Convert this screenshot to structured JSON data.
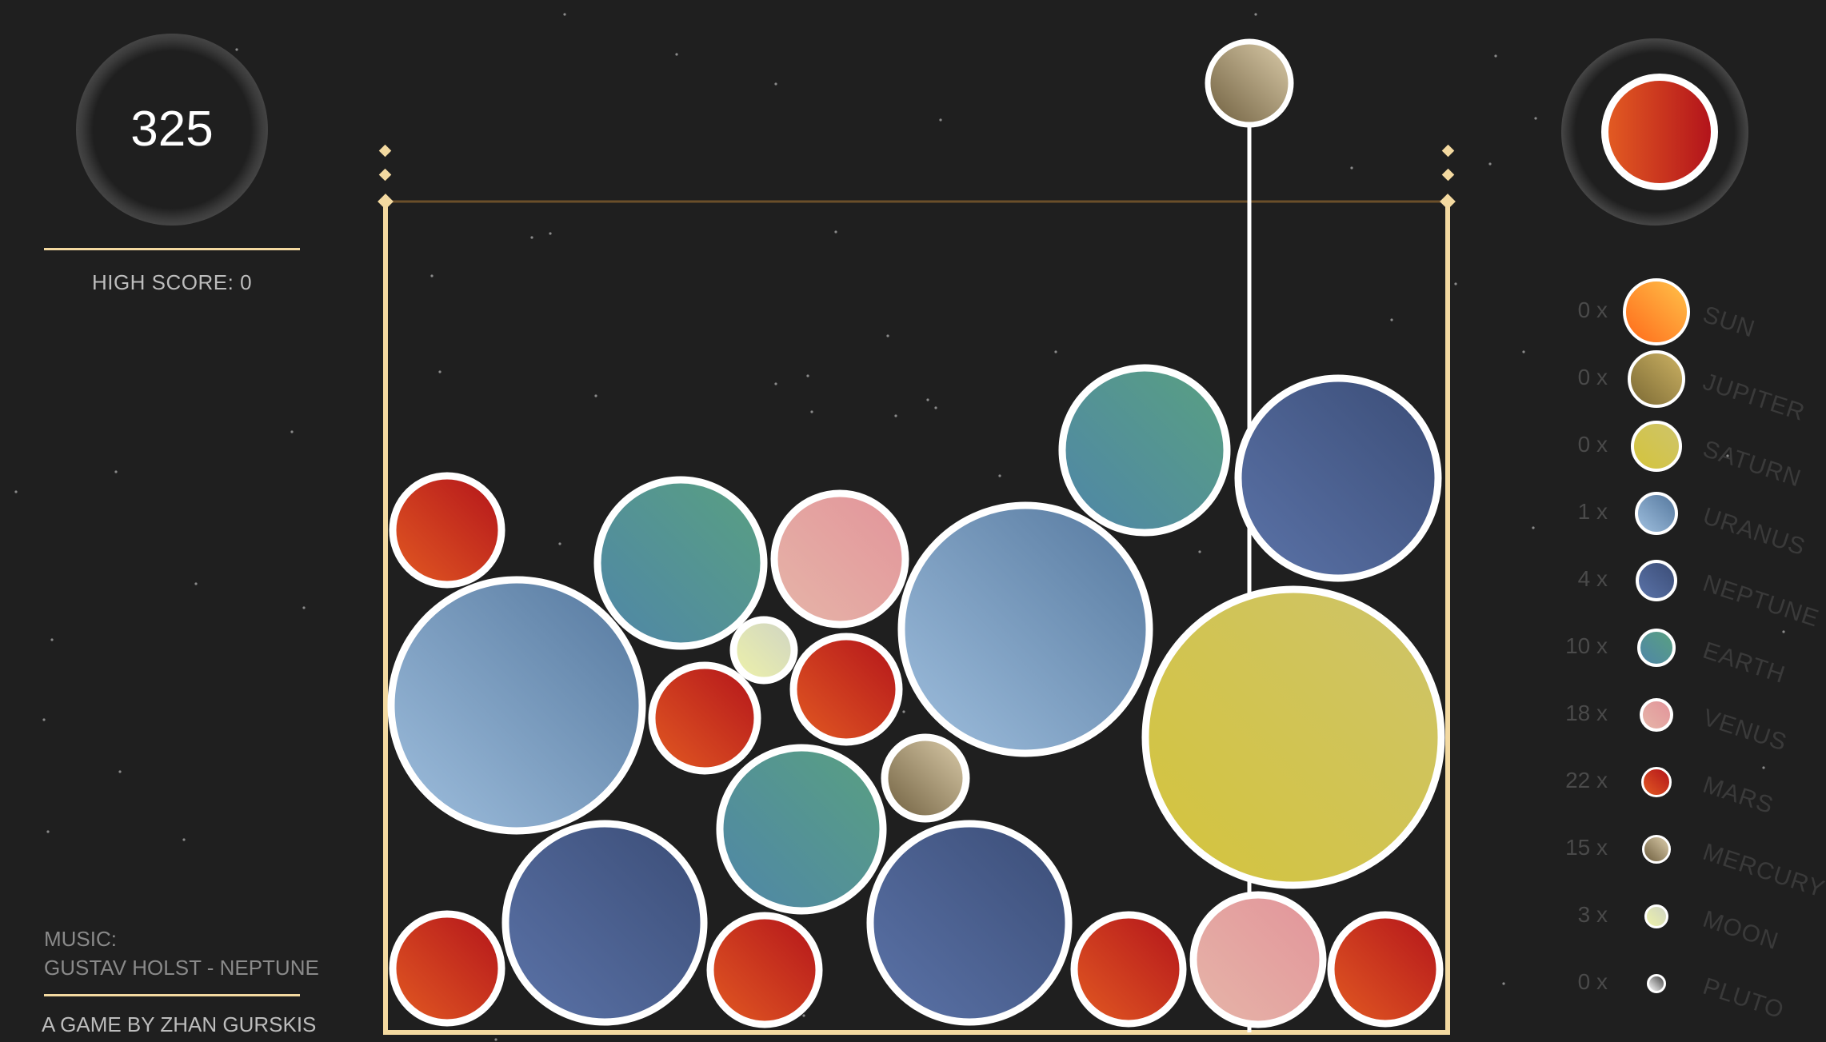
{
  "score": "325",
  "high_score_label": "HIGH SCORE: 0",
  "music_label": "MUSIC:",
  "music_track": "GUSTAV HOLST - NEPTUNE",
  "credit": "A GAME BY ZHAN GURSKIS",
  "planet_colors": {
    "sun": [
      "#ff6a1a",
      "#ffc24a"
    ],
    "jupiter": [
      "#7c6a34",
      "#cbb163"
    ],
    "saturn": [
      "#d4c43c",
      "#cec46a"
    ],
    "uranus": [
      "#9fbfde",
      "#55789e"
    ],
    "neptune": [
      "#5b73a8",
      "#3b4d77"
    ],
    "earth": [
      "#4f86a8",
      "#59a081"
    ],
    "venus": [
      "#e6b5a8",
      "#e2949a"
    ],
    "mars": [
      "#e25a22",
      "#b3141b"
    ],
    "mercury": [
      "#6e5e3e",
      "#dccdab"
    ],
    "moon": [
      "#eef2a8",
      "#cfd4c4"
    ],
    "pluto": [
      "#ffffff",
      "#444444"
    ]
  },
  "next_planet": "mars",
  "dropper_planet": "mercury",
  "legend": [
    {
      "count": "0 x",
      "name": "SUN",
      "planet": "sun"
    },
    {
      "count": "0 x",
      "name": "JUPITER",
      "planet": "jupiter"
    },
    {
      "count": "0 x",
      "name": "SATURN",
      "planet": "saturn"
    },
    {
      "count": "1 x",
      "name": "URANUS",
      "planet": "uranus"
    },
    {
      "count": "4 x",
      "name": "NEPTUNE",
      "planet": "neptune"
    },
    {
      "count": "10 x",
      "name": "EARTH",
      "planet": "earth"
    },
    {
      "count": "18 x",
      "name": "VENUS",
      "planet": "venus"
    },
    {
      "count": "22 x",
      "name": "MARS",
      "planet": "mars"
    },
    {
      "count": "15 x",
      "name": "MERCURY",
      "planet": "mercury"
    },
    {
      "count": "3 x",
      "name": "MOON",
      "planet": "moon"
    },
    {
      "count": "0 x",
      "name": "PLUTO",
      "planet": "pluto"
    }
  ],
  "board_planets": [
    "mars",
    "uranus",
    "earth",
    "venus",
    "moon",
    "mars",
    "mars",
    "uranus",
    "earth",
    "neptune",
    "earth",
    "mercury",
    "neptune",
    "mars",
    "neptune",
    "mars",
    "saturn",
    "mars",
    "venus",
    "mars"
  ]
}
